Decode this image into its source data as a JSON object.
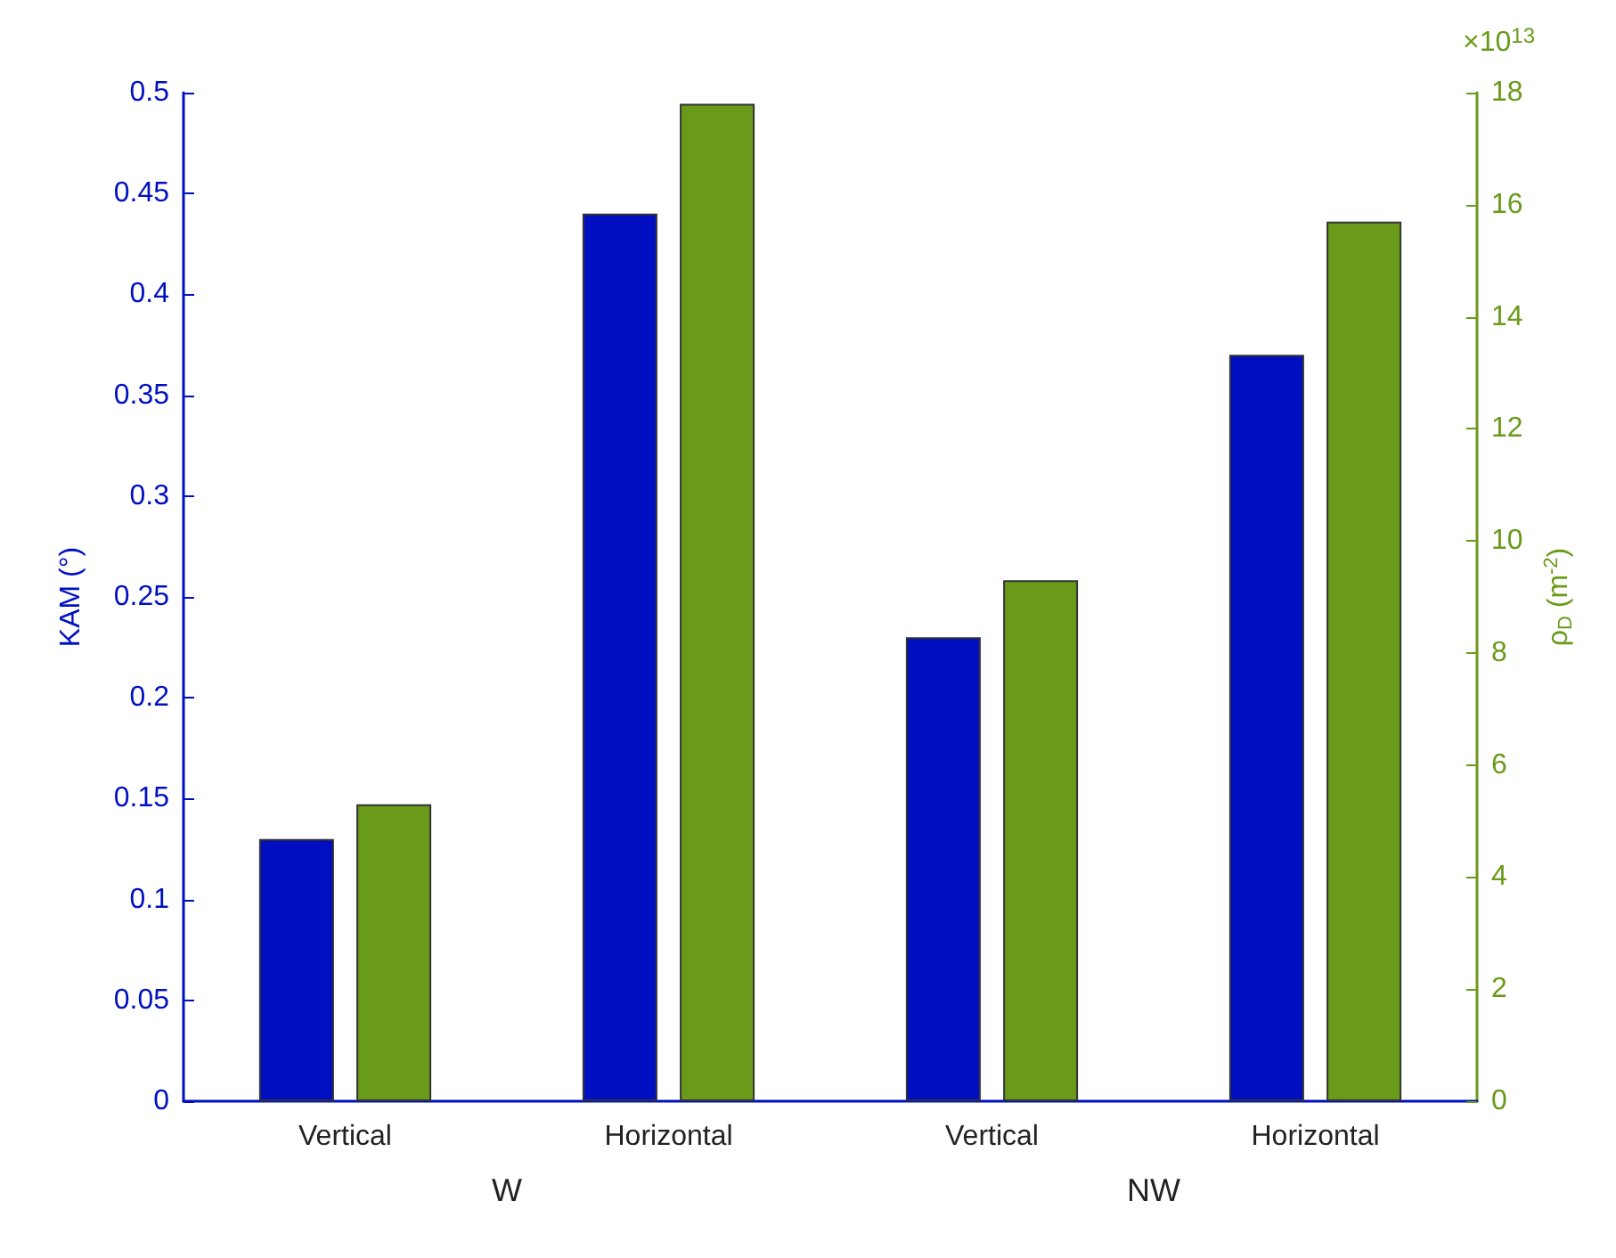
{
  "chart_data": {
    "type": "bar",
    "ylabel": "KAM (°)",
    "y2label": "ρ$_{D}$ (m$^{-2}$)",
    "categories": [
      "Vertical",
      "Horizontal",
      "Vertical",
      "Horizontal"
    ],
    "series": [
      {
        "color": "#0010c0",
        "values": [
          0.13,
          0.44,
          0.23,
          0.37
        ]
      },
      {
        "color": "#6a9a1a",
        "values": [
          5.3,
          17.8,
          9.3,
          15.7
        ],
        "axis": "y2"
      }
    ],
    "ylim": [
      0,
      0.5
    ],
    "yticks": [
      0,
      0.05,
      0.1,
      0.15,
      0.2,
      0.25,
      0.3,
      0.35,
      0.4,
      0.45,
      0.5
    ],
    "y2lim": [
      0,
      18
    ],
    "y2ticks": [
      0,
      2,
      4,
      6,
      8,
      10,
      12,
      14,
      16,
      18
    ],
    "annotations": [
      "×10$^{13}$",
      "W",
      "NW"
    ]
  }
}
